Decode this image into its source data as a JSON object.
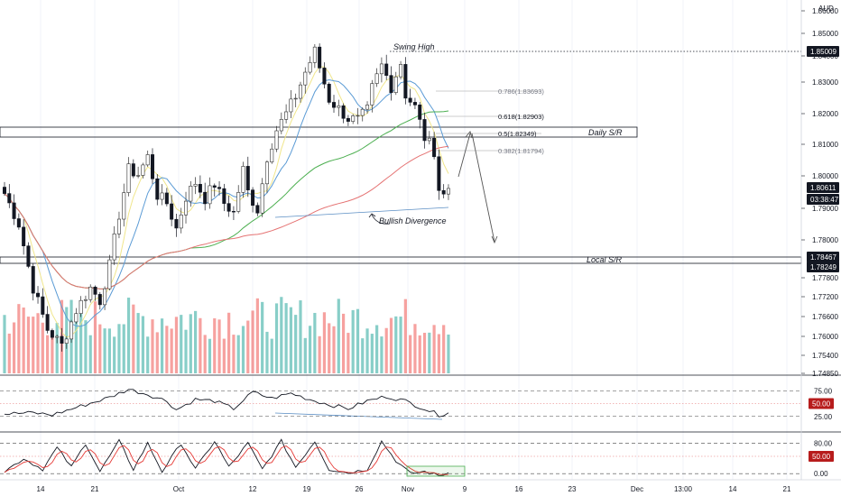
{
  "chart_data": [
    {
      "type": "candlestick",
      "currency": "AUD",
      "ylim": [
        1.7485,
        1.86
      ],
      "price_ticks": [
        "1.86000",
        "1.85000",
        "1.84000",
        "1.83000",
        "1.82000",
        "1.81000",
        "1.80000",
        "1.79000",
        "1.78000",
        "1.77800",
        "1.77200",
        "1.76600",
        "1.76000",
        "1.75400",
        "1.74850"
      ],
      "x_ticks": [
        "14",
        "21",
        "Oct",
        "12",
        "19",
        "26",
        "Nov",
        "9",
        "16",
        "23",
        "Dec",
        "13:00",
        "14",
        "21"
      ],
      "price_tags": [
        {
          "label": "1.85009",
          "value": 1.85009,
          "color": "#131722"
        },
        {
          "label": "1.80611",
          "value": 1.80611,
          "color": "#131722"
        },
        {
          "label": "03:38:47",
          "value": 1.8037,
          "color": "#131722"
        },
        {
          "label": "1.78467",
          "value": 1.78467,
          "color": "#131722"
        },
        {
          "label": "1.78249",
          "value": 1.78249,
          "color": "#131722"
        }
      ],
      "annotations": {
        "swing_high": "Swing High",
        "daily_sr": "Daily S/R",
        "local_sr": "Local S/R",
        "bullish_divergence": "Bullish Divergence"
      },
      "fib_levels": [
        {
          "label": "0.786(1.83693)",
          "value": 1.83693
        },
        {
          "label": "0.618(1.82903)",
          "value": 1.82903
        },
        {
          "label": "0.5(1.82349)",
          "value": 1.82349
        },
        {
          "label": "0.382(1.81794)",
          "value": 1.81794
        }
      ],
      "swing_high_level": 1.85009,
      "daily_sr_zone": [
        1.8222,
        1.8262
      ],
      "local_sr_zone": [
        1.78249,
        1.78467
      ],
      "colors": {
        "up": "#26a69a",
        "down": "#ef5350",
        "ma_fast": "#5b9bd5",
        "ma_mid": "#4caf50",
        "ma_slow": "#e57373",
        "ma_yellow": "#f0e68c"
      },
      "anchors": [
        {
          "i": 0,
          "c": 1.8045
        },
        {
          "i": 3,
          "c": 1.795
        },
        {
          "i": 6,
          "c": 1.775
        },
        {
          "i": 9,
          "c": 1.762
        },
        {
          "i": 12,
          "c": 1.757
        },
        {
          "i": 15,
          "c": 1.768
        },
        {
          "i": 18,
          "c": 1.775
        },
        {
          "i": 20,
          "c": 1.771
        },
        {
          "i": 22,
          "c": 1.782
        },
        {
          "i": 24,
          "c": 1.798
        },
        {
          "i": 26,
          "c": 1.812
        },
        {
          "i": 28,
          "c": 1.8105
        },
        {
          "i": 30,
          "c": 1.816
        },
        {
          "i": 32,
          "c": 1.804
        },
        {
          "i": 34,
          "c": 1.8015
        },
        {
          "i": 36,
          "c": 1.7935
        },
        {
          "i": 38,
          "c": 1.8035
        },
        {
          "i": 40,
          "c": 1.808
        },
        {
          "i": 42,
          "c": 1.803
        },
        {
          "i": 44,
          "c": 1.8075
        },
        {
          "i": 46,
          "c": 1.8015
        },
        {
          "i": 48,
          "c": 1.7985
        },
        {
          "i": 50,
          "c": 1.812
        },
        {
          "i": 51,
          "c": 1.805
        },
        {
          "i": 53,
          "c": 1.7995
        },
        {
          "i": 55,
          "c": 1.816
        },
        {
          "i": 57,
          "c": 1.8245
        },
        {
          "i": 59,
          "c": 1.8295
        },
        {
          "i": 61,
          "c": 1.835
        },
        {
          "i": 63,
          "c": 1.8425
        },
        {
          "i": 65,
          "c": 1.849
        },
        {
          "i": 66,
          "c": 1.844
        },
        {
          "i": 68,
          "c": 1.834
        },
        {
          "i": 70,
          "c": 1.831
        },
        {
          "i": 72,
          "c": 1.828
        },
        {
          "i": 74,
          "c": 1.8275
        },
        {
          "i": 76,
          "c": 1.8305
        },
        {
          "i": 77,
          "c": 1.8375
        },
        {
          "i": 79,
          "c": 1.8445
        },
        {
          "i": 81,
          "c": 1.838
        },
        {
          "i": 83,
          "c": 1.8455
        },
        {
          "i": 84,
          "c": 1.8355
        },
        {
          "i": 86,
          "c": 1.8315
        },
        {
          "i": 88,
          "c": 1.822
        },
        {
          "i": 90,
          "c": 1.818
        },
        {
          "i": 91,
          "c": 1.806
        },
        {
          "i": 92,
          "c": 1.804
        },
        {
          "i": 93,
          "c": 1.8061
        }
      ],
      "volume_range": [
        0.45,
        1.0
      ],
      "rsi": {
        "ylim": [
          0,
          100
        ],
        "levels": [
          "75.00",
          "50.00",
          "25.00"
        ],
        "tag": "50.00",
        "anchors": [
          {
            "i": 0,
            "v": 30
          },
          {
            "i": 6,
            "v": 32
          },
          {
            "i": 10,
            "v": 28
          },
          {
            "i": 16,
            "v": 45
          },
          {
            "i": 22,
            "v": 62
          },
          {
            "i": 26,
            "v": 78
          },
          {
            "i": 30,
            "v": 68
          },
          {
            "i": 34,
            "v": 55
          },
          {
            "i": 36,
            "v": 38
          },
          {
            "i": 40,
            "v": 58
          },
          {
            "i": 44,
            "v": 55
          },
          {
            "i": 48,
            "v": 40
          },
          {
            "i": 52,
            "v": 72
          },
          {
            "i": 56,
            "v": 60
          },
          {
            "i": 60,
            "v": 70
          },
          {
            "i": 64,
            "v": 58
          },
          {
            "i": 68,
            "v": 48
          },
          {
            "i": 72,
            "v": 40
          },
          {
            "i": 76,
            "v": 55
          },
          {
            "i": 80,
            "v": 64
          },
          {
            "i": 84,
            "v": 55
          },
          {
            "i": 88,
            "v": 40
          },
          {
            "i": 91,
            "v": 28
          },
          {
            "i": 93,
            "v": 32
          }
        ]
      },
      "stoch": {
        "ylim": [
          0,
          100
        ],
        "levels": [
          "80.00",
          "50.00",
          "0.00"
        ],
        "tag": "50.00",
        "anchors": [
          {
            "i": 0,
            "v": 15
          },
          {
            "i": 4,
            "v": 45
          },
          {
            "i": 8,
            "v": 20
          },
          {
            "i": 11,
            "v": 70
          },
          {
            "i": 14,
            "v": 25
          },
          {
            "i": 17,
            "v": 80
          },
          {
            "i": 20,
            "v": 15
          },
          {
            "i": 24,
            "v": 85
          },
          {
            "i": 27,
            "v": 20
          },
          {
            "i": 30,
            "v": 80
          },
          {
            "i": 33,
            "v": 15
          },
          {
            "i": 37,
            "v": 80
          },
          {
            "i": 40,
            "v": 20
          },
          {
            "i": 44,
            "v": 85
          },
          {
            "i": 47,
            "v": 25
          },
          {
            "i": 51,
            "v": 80
          },
          {
            "i": 54,
            "v": 20
          },
          {
            "i": 58,
            "v": 85
          },
          {
            "i": 61,
            "v": 25
          },
          {
            "i": 65,
            "v": 85
          },
          {
            "i": 68,
            "v": 20
          },
          {
            "i": 72,
            "v": 12
          },
          {
            "i": 76,
            "v": 20
          },
          {
            "i": 79,
            "v": 85
          },
          {
            "i": 82,
            "v": 40
          },
          {
            "i": 85,
            "v": 10
          },
          {
            "i": 88,
            "v": 15
          },
          {
            "i": 91,
            "v": 5
          },
          {
            "i": 93,
            "v": 12
          }
        ]
      }
    }
  ]
}
